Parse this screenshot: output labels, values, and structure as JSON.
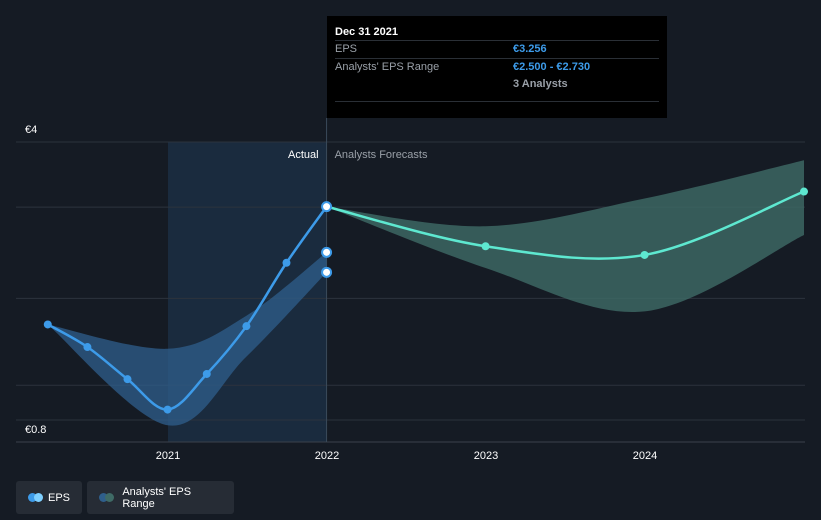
{
  "chart_data": {
    "type": "line",
    "y_ticks": [
      "€4",
      "€0.8"
    ],
    "ylim": [
      0.8,
      4
    ],
    "x_tick_labels": [
      "2021",
      "2022",
      "2023",
      "2024"
    ],
    "region_labels": {
      "actual": "Actual",
      "forecast": "Analysts Forecasts"
    },
    "series": [
      {
        "name": "EPS",
        "points": [
          {
            "x": "2020-03-31",
            "y": 1.9
          },
          {
            "x": "2020-06-30",
            "y": 1.64
          },
          {
            "x": "2020-09-30",
            "y": 1.27
          },
          {
            "x": "2020-12-31",
            "y": 0.92
          },
          {
            "x": "2021-03-31",
            "y": 1.33
          },
          {
            "x": "2021-06-30",
            "y": 1.88
          },
          {
            "x": "2021-09-30",
            "y": 2.61
          },
          {
            "x": "2021-12-31",
            "y": 3.256
          }
        ],
        "extra_points": [
          {
            "x": "2021-12-31",
            "y": 2.73
          },
          {
            "x": "2021-12-31",
            "y": 2.5
          }
        ]
      },
      {
        "name": "Analysts' EPS Range",
        "historical_upper": [
          {
            "x": "2020-03-31",
            "y": 1.9
          },
          {
            "x": "2020-12-31",
            "y": 1.62
          },
          {
            "x": "2021-06-30",
            "y": 2.0
          },
          {
            "x": "2021-12-31",
            "y": 2.73
          }
        ],
        "historical_lower": [
          {
            "x": "2020-03-31",
            "y": 1.9
          },
          {
            "x": "2020-12-31",
            "y": 0.74
          },
          {
            "x": "2021-06-30",
            "y": 1.53
          },
          {
            "x": "2021-12-31",
            "y": 2.5
          }
        ],
        "forecast_mean": [
          {
            "x": "2021-12-31",
            "y": 3.256
          },
          {
            "x": "2022-12-31",
            "y": 2.8
          },
          {
            "x": "2023-12-31",
            "y": 2.7
          },
          {
            "x": "2024-12-31",
            "y": 3.43
          }
        ],
        "forecast_upper": [
          {
            "x": "2021-12-31",
            "y": 3.256
          },
          {
            "x": "2022-12-31",
            "y": 3.03
          },
          {
            "x": "2023-12-31",
            "y": 3.35
          },
          {
            "x": "2024-12-31",
            "y": 3.79
          }
        ],
        "forecast_lower": [
          {
            "x": "2021-12-31",
            "y": 3.256
          },
          {
            "x": "2022-12-31",
            "y": 2.55
          },
          {
            "x": "2023-12-31",
            "y": 2.05
          },
          {
            "x": "2024-12-31",
            "y": 2.93
          }
        ]
      }
    ],
    "colors": {
      "eps": "#3d9be9",
      "forecast": "#5ee8d0",
      "range_forecast": "#3f6b66",
      "range_historical": "#2f5f8c"
    },
    "grid": true,
    "legend_position": "bottom-left"
  },
  "tooltip": {
    "date": "Dec 31 2021",
    "rows": [
      {
        "label": "EPS",
        "value": "€3.256"
      },
      {
        "label": "Analysts' EPS Range",
        "value": "€2.500 - €2.730"
      }
    ],
    "analysts": "3 Analysts"
  },
  "legend": {
    "eps_label": "EPS",
    "range_label": "Analysts' EPS Range"
  }
}
